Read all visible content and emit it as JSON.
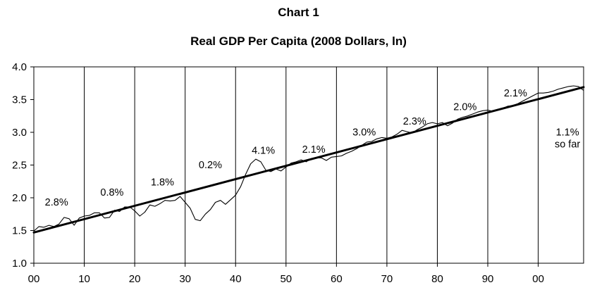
{
  "header": {
    "chart_number": "Chart 1",
    "title": "Real GDP Per Capita (2008 Dollars, ln)"
  },
  "chart_data": {
    "type": "line",
    "title": "Real GDP Per Capita (2008 Dollars, ln)",
    "xlabel": "",
    "ylabel": "",
    "xlim": [
      1900,
      2009
    ],
    "ylim": [
      1.0,
      4.0
    ],
    "x_ticks": [
      1900,
      1910,
      1920,
      1930,
      1940,
      1950,
      1960,
      1970,
      1980,
      1990,
      2000
    ],
    "x_tick_labels": [
      "00",
      "10",
      "20",
      "30",
      "40",
      "50",
      "60",
      "70",
      "80",
      "90",
      "00"
    ],
    "y_ticks": [
      1.0,
      1.5,
      2.0,
      2.5,
      3.0,
      3.5,
      4.0
    ],
    "y_tick_labels": [
      "1.0",
      "1.5",
      "2.0",
      "2.5",
      "3.0",
      "3.5",
      "4.0"
    ],
    "grid": "vertical",
    "series": [
      {
        "style": "actual-thin",
        "x": [
          1900,
          1901,
          1902,
          1903,
          1904,
          1905,
          1906,
          1907,
          1908,
          1909,
          1910,
          1911,
          1912,
          1913,
          1914,
          1915,
          1916,
          1917,
          1918,
          1919,
          1920,
          1921,
          1922,
          1923,
          1924,
          1925,
          1926,
          1927,
          1928,
          1929,
          1930,
          1931,
          1932,
          1933,
          1934,
          1935,
          1936,
          1937,
          1938,
          1939,
          1940,
          1941,
          1942,
          1943,
          1944,
          1945,
          1946,
          1947,
          1948,
          1949,
          1950,
          1951,
          1952,
          1953,
          1954,
          1955,
          1956,
          1957,
          1958,
          1959,
          1960,
          1961,
          1962,
          1963,
          1964,
          1965,
          1966,
          1967,
          1968,
          1969,
          1970,
          1971,
          1972,
          1973,
          1974,
          1975,
          1976,
          1977,
          1978,
          1979,
          1980,
          1981,
          1982,
          1983,
          1984,
          1985,
          1986,
          1987,
          1988,
          1989,
          1990,
          1991,
          1992,
          1993,
          1994,
          1995,
          1996,
          1997,
          1998,
          1999,
          2000,
          2001,
          2002,
          2003,
          2004,
          2005,
          2006,
          2007,
          2008,
          2009
        ],
        "values": [
          1.49,
          1.56,
          1.55,
          1.58,
          1.56,
          1.6,
          1.7,
          1.68,
          1.58,
          1.69,
          1.72,
          1.73,
          1.77,
          1.77,
          1.69,
          1.7,
          1.81,
          1.79,
          1.86,
          1.86,
          1.8,
          1.72,
          1.78,
          1.89,
          1.87,
          1.91,
          1.96,
          1.95,
          1.96,
          2.02,
          1.93,
          1.84,
          1.67,
          1.65,
          1.75,
          1.82,
          1.93,
          1.96,
          1.9,
          1.97,
          2.04,
          2.17,
          2.36,
          2.52,
          2.59,
          2.55,
          2.42,
          2.4,
          2.44,
          2.41,
          2.47,
          2.53,
          2.55,
          2.58,
          2.55,
          2.6,
          2.61,
          2.61,
          2.57,
          2.62,
          2.63,
          2.64,
          2.68,
          2.71,
          2.75,
          2.8,
          2.85,
          2.86,
          2.9,
          2.92,
          2.91,
          2.93,
          2.97,
          3.03,
          3.01,
          2.99,
          3.04,
          3.08,
          3.13,
          3.15,
          3.13,
          3.15,
          3.1,
          3.14,
          3.2,
          3.23,
          3.25,
          3.28,
          3.31,
          3.33,
          3.34,
          3.32,
          3.35,
          3.37,
          3.4,
          3.41,
          3.44,
          3.48,
          3.52,
          3.56,
          3.6,
          3.6,
          3.61,
          3.63,
          3.66,
          3.68,
          3.7,
          3.71,
          3.7,
          3.64
        ]
      },
      {
        "style": "trend-thick",
        "x": [
          1900,
          2009
        ],
        "values": [
          1.47,
          3.69
        ]
      }
    ],
    "annotations": [
      {
        "text": "2.8%",
        "x": 1904.5,
        "y": 1.88
      },
      {
        "text": "0.8%",
        "x": 1915.5,
        "y": 2.03
      },
      {
        "text": "1.8%",
        "x": 1925.5,
        "y": 2.19
      },
      {
        "text": "0.2%",
        "x": 1935,
        "y": 2.45
      },
      {
        "text": "4.1%",
        "x": 1945.5,
        "y": 2.67
      },
      {
        "text": "2.1%",
        "x": 1955.5,
        "y": 2.69
      },
      {
        "text": "3.0%",
        "x": 1965.5,
        "y": 2.95
      },
      {
        "text": "2.3%",
        "x": 1975.5,
        "y": 3.12
      },
      {
        "text": "2.0%",
        "x": 1985.5,
        "y": 3.34
      },
      {
        "text": "2.1%",
        "x": 1995.5,
        "y": 3.55
      },
      {
        "text": "1.1%",
        "x": 2005.8,
        "y": 2.95
      },
      {
        "text": "so far",
        "x": 2005.8,
        "y": 2.77
      }
    ]
  }
}
